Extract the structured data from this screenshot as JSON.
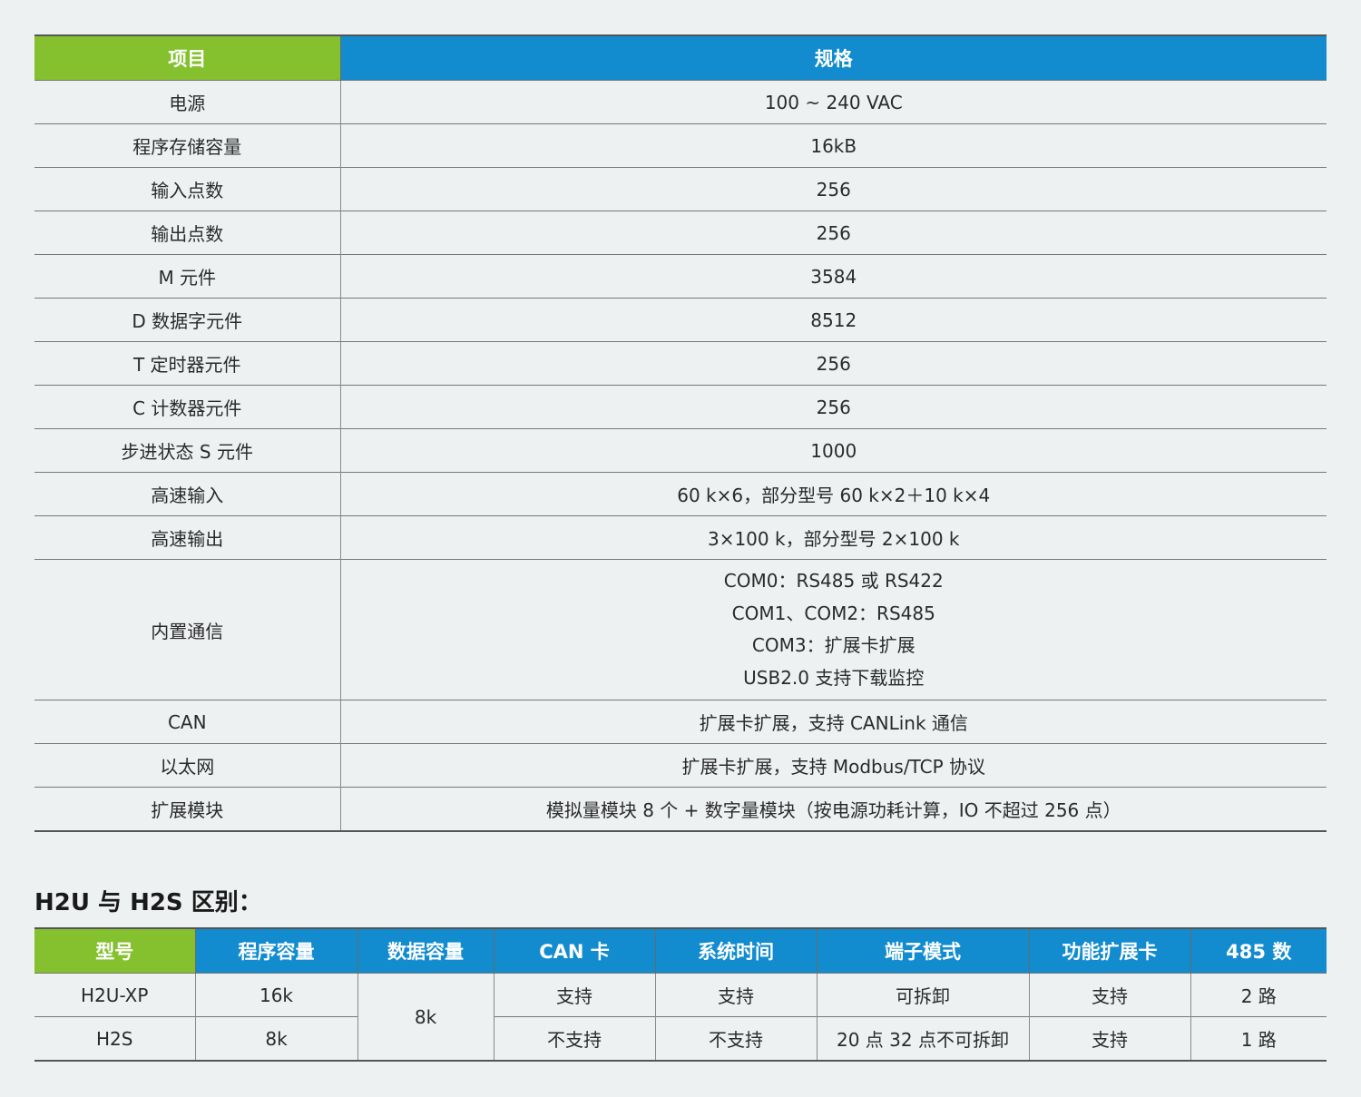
{
  "spec_table": {
    "headers": [
      "项目",
      "规格"
    ],
    "rows": [
      {
        "item": "电源",
        "spec": "100 ~ 240 VAC"
      },
      {
        "item": "程序存储容量",
        "spec": "16kB"
      },
      {
        "item": "输入点数",
        "spec": "256"
      },
      {
        "item": "输出点数",
        "spec": "256"
      },
      {
        "item": "M 元件",
        "spec": "3584"
      },
      {
        "item": "D 数据字元件",
        "spec": "8512"
      },
      {
        "item": "T 定时器元件",
        "spec": "256"
      },
      {
        "item": "C 计数器元件",
        "spec": "256"
      },
      {
        "item": "步进状态 S 元件",
        "spec": "1000"
      },
      {
        "item": "高速输入",
        "spec": "60 k×6，部分型号 60 k×2＋10 k×4"
      },
      {
        "item": "高速输出",
        "spec": "3×100 k，部分型号 2×100 k"
      }
    ],
    "comm": {
      "item": "内置通信",
      "lines": [
        "COM0：RS485 或 RS422",
        "COM1、COM2：RS485",
        "COM3：扩展卡扩展",
        "USB2.0 支持下载监控"
      ]
    },
    "rows2": [
      {
        "item": "CAN",
        "spec": "扩展卡扩展，支持 CANLink 通信"
      },
      {
        "item": "以太网",
        "spec": "扩展卡扩展，支持 Modbus/TCP 协议"
      },
      {
        "item": "扩展模块",
        "spec": "模拟量模块 8 个 + 数字量模块（按电源功耗计算，IO 不超过 256 点）"
      }
    ]
  },
  "compare": {
    "title": "H2U 与 H2S 区别：",
    "headers": [
      "型号",
      "程序容量",
      "数据容量",
      "CAN 卡",
      "系统时间",
      "端子模式",
      "功能扩展卡",
      "485 数"
    ],
    "shared_data_capacity": "8k",
    "rows": [
      {
        "model": "H2U-XP",
        "program": "16k",
        "can": "支持",
        "time": "支持",
        "terminal": "可拆卸",
        "ext": "支持",
        "rs485": "2 路"
      },
      {
        "model": "H2S",
        "program": "8k",
        "can": "不支持",
        "time": "不支持",
        "terminal": "20 点 32 点不可拆卸",
        "ext": "支持",
        "rs485": "1 路"
      }
    ]
  },
  "colors": {
    "header_green": "#85c12e",
    "header_blue": "#128ccf",
    "background": "#eef1f2"
  }
}
